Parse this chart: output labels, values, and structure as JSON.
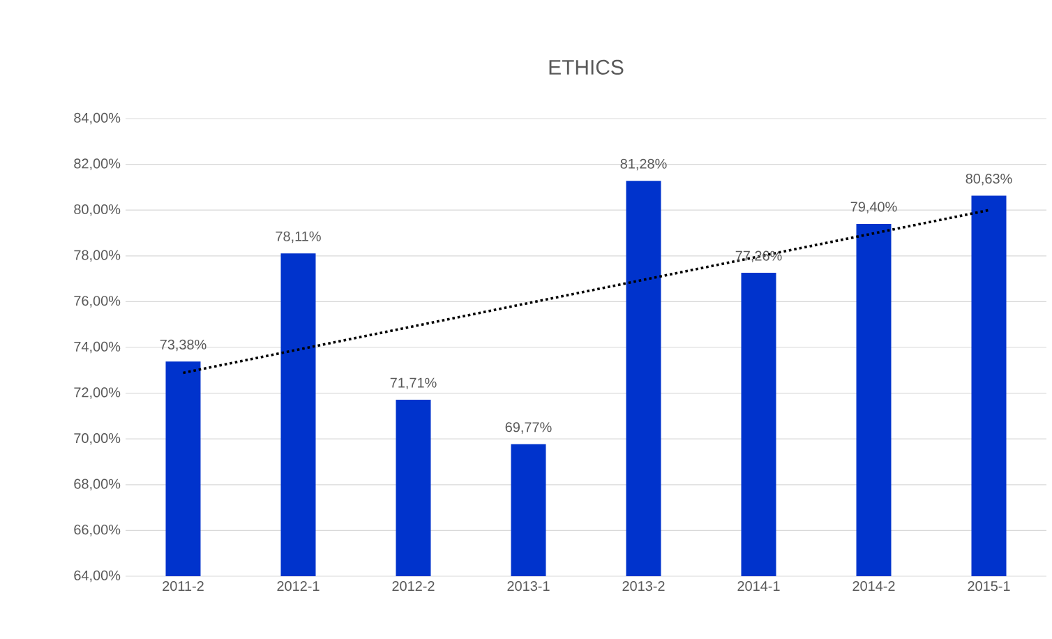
{
  "chart_data": {
    "type": "bar",
    "title": "ETHICS",
    "categories": [
      "2011-2",
      "2012-1",
      "2012-2",
      "2013-1",
      "2013-2",
      "2014-1",
      "2014-2",
      "2015-1"
    ],
    "ylim": [
      64,
      84
    ],
    "yticks": [
      {
        "value": 64,
        "label": "64,00%"
      },
      {
        "value": 66,
        "label": "66,00%"
      },
      {
        "value": 68,
        "label": "68,00%"
      },
      {
        "value": 70,
        "label": "70,00%"
      },
      {
        "value": 72,
        "label": "72,00%"
      },
      {
        "value": 74,
        "label": "74,00%"
      },
      {
        "value": 76,
        "label": "76,00%"
      },
      {
        "value": 78,
        "label": "78,00%"
      },
      {
        "value": 80,
        "label": "80,00%"
      },
      {
        "value": 82,
        "label": "82,00%"
      },
      {
        "value": 84,
        "label": "84,00%"
      }
    ],
    "grid": "y",
    "series": [
      {
        "color": "#0033cc",
        "values": [
          73.38,
          78.11,
          71.71,
          69.77,
          81.28,
          77.26,
          79.4,
          80.63
        ],
        "value_labels": [
          "73,38%",
          "78,11%",
          "71,71%",
          "69,77%",
          "81,28%",
          "77,26%",
          "79,40%",
          "80,63%"
        ]
      },
      {
        "type": "line",
        "x": [
          "2011-2",
          "2015-1"
        ],
        "values": [
          72.89,
          80.0
        ],
        "color": "#000000",
        "line_style": "dotted",
        "marker": "none"
      }
    ]
  }
}
